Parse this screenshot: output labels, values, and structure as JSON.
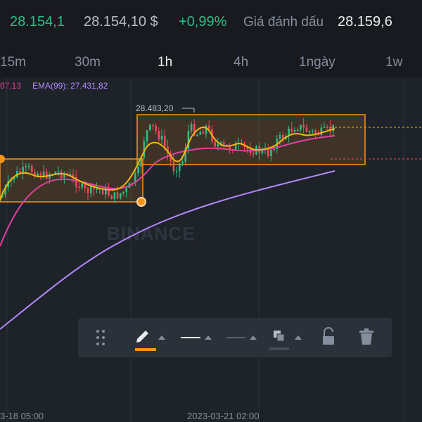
{
  "header": {
    "last_price": "28.154,1",
    "usd_price": "28.154,10 $",
    "change_pct": "+0,99%",
    "mark_label": "Giá đánh dấu",
    "mark_value": "28.159,6"
  },
  "timeframes": [
    {
      "label": "15m",
      "active": false
    },
    {
      "label": "30m",
      "active": false
    },
    {
      "label": "1h",
      "active": true
    },
    {
      "label": "4h",
      "active": false
    },
    {
      "label": "1ngày",
      "active": false
    },
    {
      "label": "1w",
      "active": false
    }
  ],
  "indicators": {
    "ema_partial": "07,13",
    "ema99": "EMA(99): 27.431,82"
  },
  "chart": {
    "high_label": "28.483,20",
    "watermark": "BINANCE",
    "x_labels": [
      "3-18 05:00",
      "2023-03-21 02:00"
    ]
  },
  "toolbar": {
    "tools": [
      "drag-handle-icon",
      "pencil-icon",
      "line-thick-icon",
      "line-thin-icon",
      "fill-color-icon",
      "unlock-icon",
      "trash-icon"
    ]
  },
  "colors": {
    "up": "#2ebd85",
    "down": "#f6465d",
    "accent": "#f0b90b",
    "ema_fast": "#f0b90b",
    "ema_mid": "#e040a0",
    "ema_slow": "#b388ff",
    "drawing": "#f7931a"
  }
}
